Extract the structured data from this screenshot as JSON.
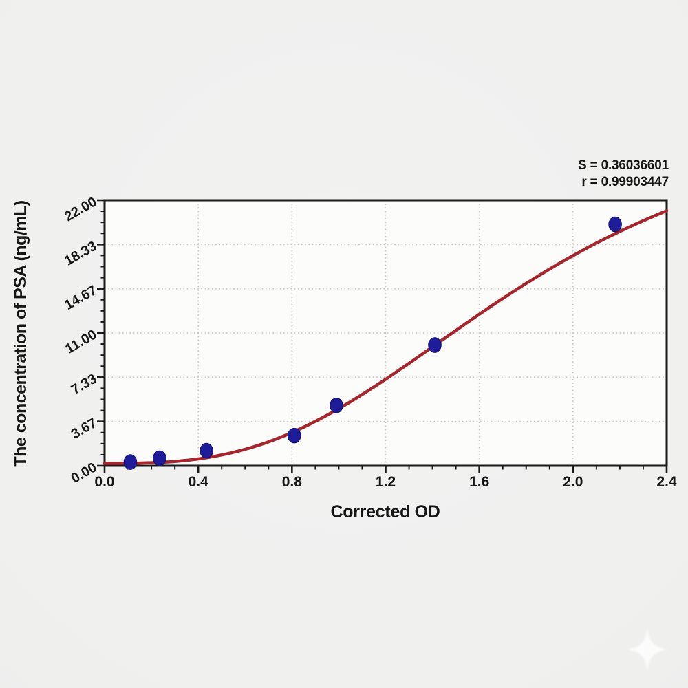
{
  "chart_data": {
    "type": "scatter",
    "title": "",
    "xlabel": "Corrected OD",
    "ylabel": "The concentration of PSA (ng/mL)",
    "xlim": [
      0,
      2.4
    ],
    "ylim": [
      0,
      22
    ],
    "x_major_ticks": [
      0,
      0.4,
      0.8,
      1.2,
      1.6,
      2.0,
      2.4
    ],
    "x_tick_labels": [
      "0.0",
      "0.4",
      "0.8",
      "1.2",
      "1.6",
      "2.0",
      "2.4"
    ],
    "x_minor_step": 0.1,
    "y_major_ticks": [
      0,
      3.6667,
      7.3333,
      11,
      14.6667,
      18.3333,
      22
    ],
    "y_tick_labels": [
      "0.00",
      "3.67",
      "7.33",
      "11.00",
      "14.67",
      "18.33",
      "22.00"
    ],
    "y_minor_divisions": 4,
    "grid": "dotted-at-major-ticks",
    "legend": "none",
    "points": {
      "od": [
        0.11,
        0.235,
        0.435,
        0.81,
        0.99,
        1.41,
        2.18
      ],
      "concentration": [
        0.312,
        0.625,
        1.25,
        2.5,
        5,
        10,
        20
      ]
    },
    "fit_curve": {
      "model": "4PL",
      "A": 0.2,
      "B": 2.9,
      "C": 1.82,
      "D": 30.5
    },
    "annotation": {
      "s_label": "S = 0.36036601",
      "r_label": "r = 0.99903447"
    },
    "colors": {
      "curve": "#a5262d",
      "point_fill": "#1e1c99",
      "point_stroke": "#12106e",
      "grid": "#c3c3c3",
      "axis": "#1a1a1a",
      "plot_bg": "#fcfcfb",
      "page_bg": "#efefee",
      "watermark": "#ffffff"
    }
  }
}
